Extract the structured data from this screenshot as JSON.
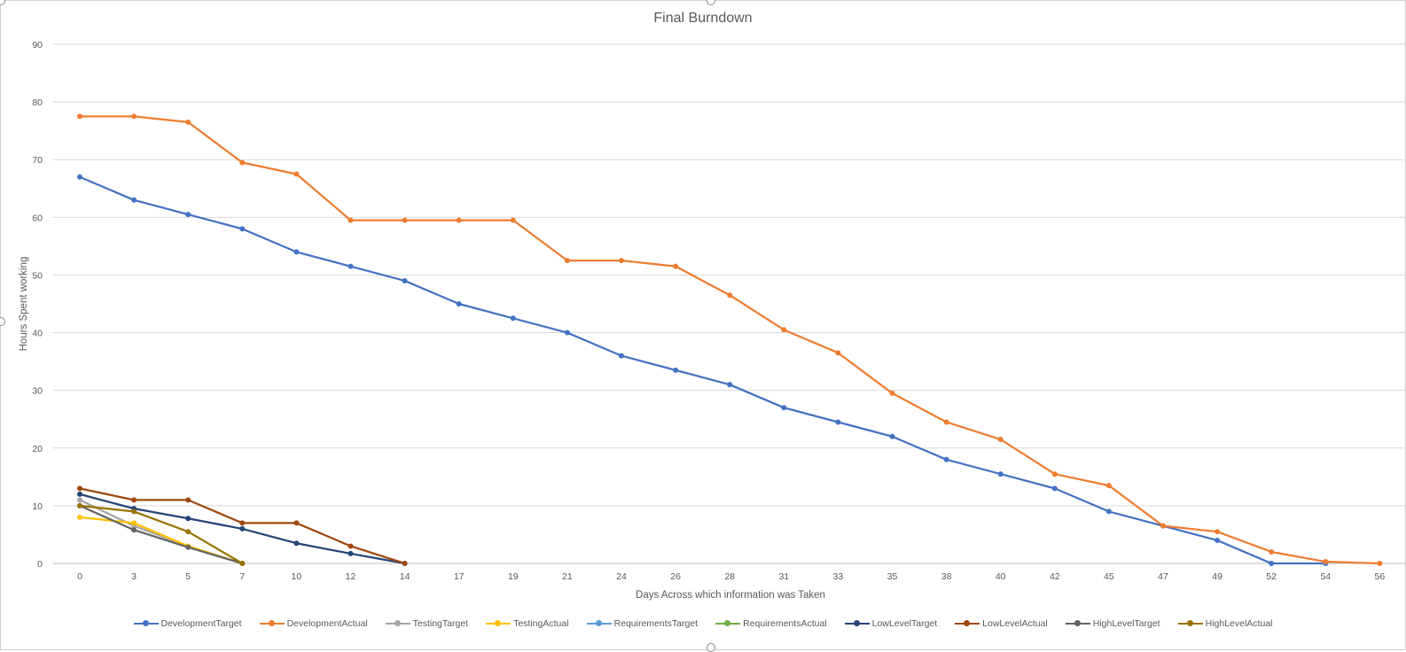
{
  "chart_data": {
    "type": "line",
    "title": "Final Burndown",
    "xlabel": "Days Across which information was Taken",
    "ylabel": "Hours Spent working",
    "ylim": [
      0,
      90
    ],
    "yticks": [
      0,
      10,
      20,
      30,
      40,
      50,
      60,
      70,
      80,
      90
    ],
    "grid": true,
    "legend_position": "bottom",
    "categories": [
      "0",
      "3",
      "5",
      "7",
      "10",
      "12",
      "14",
      "17",
      "19",
      "21",
      "24",
      "26",
      "28",
      "31",
      "33",
      "35",
      "38",
      "40",
      "42",
      "45",
      "47",
      "49",
      "52",
      "54",
      "56"
    ],
    "series": [
      {
        "name": "DevelopmentTarget",
        "color": "#4472c4",
        "values": [
          67,
          63,
          60.5,
          58,
          54,
          51.5,
          49,
          45,
          42.5,
          40,
          36,
          33.5,
          31,
          27,
          24.5,
          22,
          18,
          15.5,
          13,
          9,
          6.5,
          4,
          0,
          0,
          null
        ]
      },
      {
        "name": "DevelopmentActual",
        "color": "#ed7d31",
        "values": [
          77.5,
          77.5,
          76.5,
          69.5,
          67.5,
          59.5,
          59.5,
          59.5,
          59.5,
          52.5,
          52.5,
          51.5,
          46.5,
          40.5,
          36.5,
          29.5,
          24.5,
          21.5,
          15.5,
          13.5,
          6.5,
          5.5,
          2,
          0.3,
          0
        ]
      },
      {
        "name": "TestingTarget",
        "color": "#a5a5a5",
        "values": [
          11,
          6.5,
          3,
          0,
          null,
          null,
          null,
          null,
          null,
          null,
          null,
          null,
          null,
          null,
          null,
          null,
          null,
          null,
          null,
          null,
          null,
          null,
          null,
          null,
          null
        ]
      },
      {
        "name": "TestingActual",
        "color": "#ffc000",
        "values": [
          8,
          7,
          3,
          0,
          null,
          null,
          null,
          null,
          null,
          null,
          null,
          null,
          null,
          null,
          null,
          null,
          null,
          null,
          null,
          null,
          null,
          null,
          null,
          null,
          null
        ]
      },
      {
        "name": "RequirementsTarget",
        "color": "#5b9bd5",
        "values": [
          null,
          null,
          null,
          null,
          null,
          null,
          null,
          null,
          null,
          null,
          null,
          null,
          null,
          null,
          null,
          null,
          null,
          null,
          null,
          null,
          null,
          null,
          null,
          null,
          null
        ]
      },
      {
        "name": "RequirementsActual",
        "color": "#70ad47",
        "values": [
          null,
          null,
          null,
          null,
          null,
          null,
          null,
          null,
          null,
          null,
          null,
          null,
          null,
          null,
          null,
          null,
          null,
          null,
          null,
          null,
          null,
          null,
          null,
          null,
          null
        ]
      },
      {
        "name": "LowLevelTarget",
        "color": "#264478",
        "values": [
          12,
          9.5,
          7.8,
          6,
          3.5,
          1.7,
          0,
          null,
          null,
          null,
          null,
          null,
          null,
          null,
          null,
          null,
          null,
          null,
          null,
          null,
          null,
          null,
          null,
          null,
          null
        ]
      },
      {
        "name": "LowLevelActual",
        "color": "#9e480e",
        "values": [
          13,
          11,
          11,
          7,
          7,
          3,
          0,
          null,
          null,
          null,
          null,
          null,
          null,
          null,
          null,
          null,
          null,
          null,
          null,
          null,
          null,
          null,
          null,
          null,
          null
        ]
      },
      {
        "name": "HighLevelTarget",
        "color": "#636363",
        "values": [
          10,
          5.8,
          2.8,
          0,
          null,
          null,
          null,
          null,
          null,
          null,
          null,
          null,
          null,
          null,
          null,
          null,
          null,
          null,
          null,
          null,
          null,
          null,
          null,
          null,
          null
        ]
      },
      {
        "name": "HighLevelActual",
        "color": "#997300",
        "values": [
          10,
          9,
          5.5,
          0,
          null,
          null,
          null,
          null,
          null,
          null,
          null,
          null,
          null,
          null,
          null,
          null,
          null,
          null,
          null,
          null,
          null,
          null,
          null,
          null,
          null
        ]
      }
    ]
  }
}
